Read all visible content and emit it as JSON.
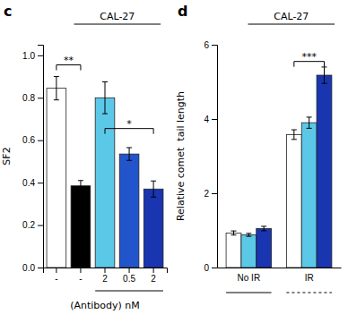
{
  "chart_data": [
    {
      "type": "bar",
      "title": "CAL-27",
      "xlabel": "(Antibody) nM",
      "ylabel": "SF2",
      "categories": [
        "-",
        "-",
        "2",
        "0.5",
        "2"
      ],
      "values": [
        0.845,
        0.385,
        0.8,
        0.535,
        0.37
      ],
      "errors": [
        0.055,
        0.025,
        0.075,
        0.03,
        0.038
      ],
      "colors": [
        "white",
        "black",
        "#5bc8e8",
        "#2255cc",
        "#1a35b0"
      ],
      "ylim": [
        0.0,
        1.05
      ],
      "yticks": [
        {
          "value": 0.0,
          "label": "0.0"
        },
        0.2,
        0.4,
        0.6,
        0.8,
        {
          "value": 1.0,
          "label": "1.0"
        }
      ],
      "annotations": [
        {
          "text": "c"
        },
        {
          "text": "**",
          "y": 0.955,
          "categories": [
            0,
            1
          ]
        },
        {
          "text": "*",
          "y": 0.655,
          "categories": [
            2,
            4
          ]
        }
      ]
    },
    {
      "type": "bar",
      "title": "CAL-27",
      "ylabel": "Relative comet  tail length",
      "categories": [
        "No IR",
        "IR"
      ],
      "series": [
        {
          "color": "white",
          "values": [
            0.93,
            3.58
          ],
          "errors": [
            0.055,
            0.13
          ]
        },
        {
          "color": "#5bc8e8",
          "values": [
            0.88,
            3.9
          ],
          "errors": [
            0.04,
            0.15
          ]
        },
        {
          "color": "#1a35b0",
          "values": [
            1.05,
            5.18
          ],
          "errors": [
            0.06,
            0.22
          ]
        }
      ],
      "ylim": [
        0,
        6
      ],
      "yticks": [
        0,
        2,
        4,
        6
      ],
      "annotations": [
        {
          "text": "d"
        },
        {
          "text": "***",
          "y": 5.55,
          "category": 1,
          "series": [
            0,
            2
          ]
        }
      ]
    }
  ]
}
